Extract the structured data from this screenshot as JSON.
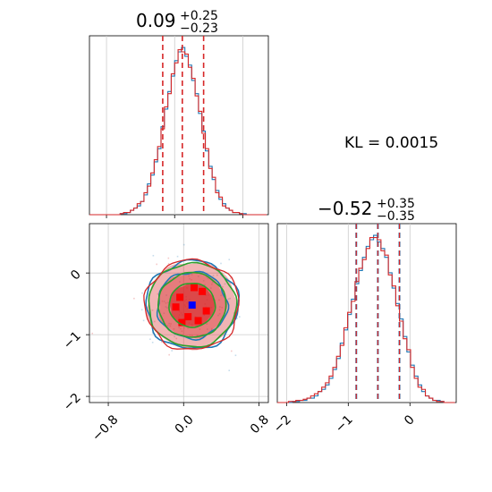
{
  "figure": {
    "kl_text": "KL = 0.0015"
  },
  "colors": {
    "series_a": "#1f77b4",
    "series_b": "#d62728",
    "contour_b": "#2ca02c",
    "quantile_line": "#d62728",
    "grid": "#cccccc"
  },
  "chart_data": [
    {
      "type": "histogram",
      "panel": "top-left marginal",
      "title_value": "0.09",
      "title_upper": "+0.25",
      "title_lower": "−0.23",
      "xlim": [
        -1.0,
        1.1
      ],
      "quantiles": [
        -0.14,
        0.09,
        0.34
      ],
      "grid": true,
      "bin_edges": [
        -1.0,
        -0.96,
        -0.92,
        -0.88,
        -0.84,
        -0.8,
        -0.76,
        -0.72,
        -0.68,
        -0.64,
        -0.6,
        -0.56,
        -0.52,
        -0.48,
        -0.44,
        -0.4,
        -0.36,
        -0.32,
        -0.28,
        -0.24,
        -0.2,
        -0.16,
        -0.12,
        -0.08,
        -0.04,
        0.0,
        0.04,
        0.08,
        0.12,
        0.16,
        0.2,
        0.24,
        0.28,
        0.32,
        0.36,
        0.4,
        0.44,
        0.48,
        0.52,
        0.56,
        0.6,
        0.64,
        0.68,
        0.72,
        0.76,
        0.8,
        0.84,
        0.88,
        0.92,
        0.96,
        1.0,
        1.04,
        1.08
      ],
      "series": [
        {
          "name": "",
          "values": [
            0,
            0,
            0,
            0,
            0,
            0,
            0,
            0,
            0,
            0.5,
            0.5,
            1,
            2,
            3,
            4,
            6,
            9,
            14,
            18,
            24,
            30,
            40,
            48,
            56,
            63,
            70,
            74,
            76,
            72,
            68,
            61,
            55,
            46,
            38,
            29,
            22,
            16,
            11,
            7,
            5,
            3,
            2,
            1,
            1,
            0.5,
            0.5,
            0,
            0,
            0,
            0,
            0,
            0
          ]
        },
        {
          "name": "",
          "values": [
            0,
            0,
            0,
            0,
            0,
            0,
            0,
            0,
            0,
            0.5,
            1,
            1,
            2,
            3,
            5,
            6,
            10,
            13,
            19,
            25,
            31,
            39,
            49,
            55,
            64,
            69,
            75,
            74,
            73,
            67,
            62,
            54,
            47,
            37,
            30,
            21,
            17,
            10,
            8,
            4,
            3,
            2,
            1,
            1,
            0.5,
            0,
            0,
            0,
            0,
            0,
            0,
            0
          ]
        }
      ]
    },
    {
      "type": "histogram",
      "panel": "bottom-right marginal",
      "title_value": "−0.52",
      "title_upper": "+0.35",
      "title_lower": "−0.35",
      "xlim": [
        -2.15,
        0.75
      ],
      "quantiles": [
        -0.87,
        -0.52,
        -0.17
      ],
      "xticks": [
        -2,
        -1,
        0
      ],
      "grid": true,
      "bin_edges": [
        -2.15,
        -2.09,
        -2.03,
        -1.97,
        -1.91,
        -1.85,
        -1.79,
        -1.73,
        -1.67,
        -1.61,
        -1.55,
        -1.49,
        -1.43,
        -1.37,
        -1.31,
        -1.25,
        -1.19,
        -1.13,
        -1.07,
        -1.01,
        -0.95,
        -0.89,
        -0.83,
        -0.77,
        -0.71,
        -0.65,
        -0.59,
        -0.53,
        -0.47,
        -0.41,
        -0.35,
        -0.29,
        -0.23,
        -0.17,
        -0.11,
        -0.05,
        0.01,
        0.07,
        0.13,
        0.19,
        0.25,
        0.31,
        0.37,
        0.43,
        0.49,
        0.55,
        0.61,
        0.67,
        0.73
      ],
      "series": [
        {
          "name": "",
          "values": [
            0,
            0,
            0,
            0,
            0.5,
            0.5,
            1,
            1,
            2,
            2,
            3,
            5,
            6,
            8,
            11,
            15,
            20,
            27,
            33,
            40,
            47,
            54,
            60,
            66,
            71,
            74,
            76,
            73,
            70,
            66,
            59,
            52,
            45,
            38,
            30,
            23,
            17,
            12,
            8,
            5,
            3,
            2,
            1,
            1,
            0.5,
            0,
            0,
            0
          ]
        },
        {
          "name": "",
          "values": [
            0,
            0,
            0,
            0.5,
            0.5,
            1,
            1,
            1.5,
            2,
            3,
            4,
            5,
            7,
            9,
            12,
            16,
            21,
            26,
            34,
            41,
            46,
            55,
            61,
            65,
            70,
            75,
            75,
            74,
            69,
            67,
            58,
            53,
            44,
            37,
            29,
            24,
            16,
            11,
            7,
            6,
            3,
            2,
            1,
            0.5,
            0.5,
            0,
            0,
            0
          ]
        }
      ]
    },
    {
      "type": "contour",
      "panel": "bottom-left joint",
      "xlim": [
        -1.0,
        0.9
      ],
      "ylim": [
        -2.1,
        0.8
      ],
      "xticks": [
        -0.8,
        0.0,
        0.8
      ],
      "yticks": [
        -2,
        -1,
        0
      ],
      "grid": true,
      "center": [
        0.09,
        -0.52
      ],
      "sigma": [
        0.24,
        0.35
      ],
      "contour_levels_sigma": [
        1.0,
        1.5,
        2.0
      ],
      "series": [
        {
          "name": "",
          "role": "filled"
        },
        {
          "name": "",
          "role": "lines"
        }
      ]
    }
  ]
}
